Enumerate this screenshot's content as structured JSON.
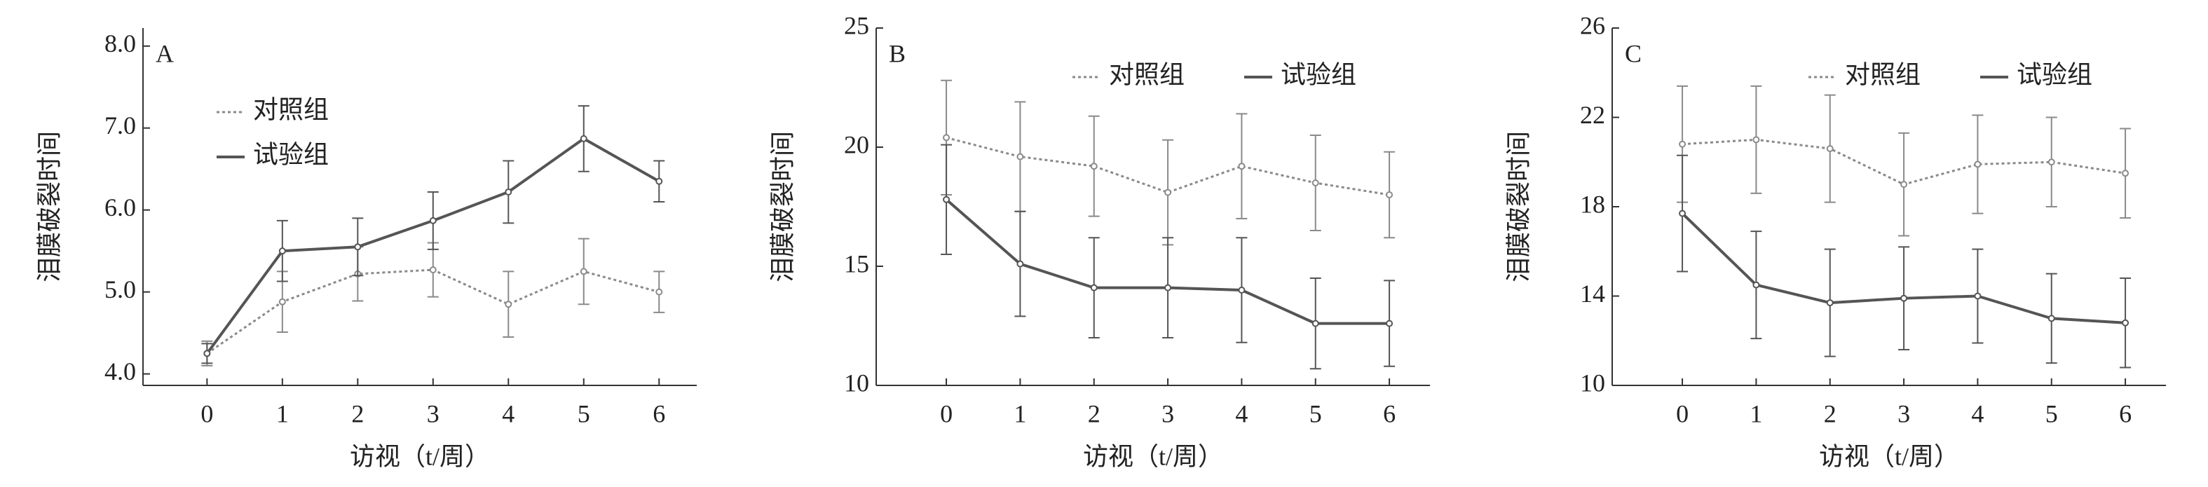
{
  "chart_data": [
    {
      "type": "line",
      "panel_label": "A",
      "ylabel": "泪膜破裂时间",
      "xlabel": "访视（t/周）",
      "legend": "upper left",
      "x": [
        0,
        1,
        2,
        3,
        4,
        5,
        6
      ],
      "xlim": [
        -0.85,
        6.5
      ],
      "xticks": [
        0,
        1,
        2,
        3,
        4,
        5,
        6
      ],
      "ylim": [
        3.86,
        8.22
      ],
      "yticks": [
        {
          "value": 4,
          "label": "4.0"
        },
        {
          "value": 5,
          "label": "5.0"
        },
        {
          "value": 6,
          "label": "6.0"
        },
        {
          "value": 7,
          "label": "7.0"
        },
        {
          "value": 8,
          "label": "8.0"
        }
      ],
      "series": [
        {
          "name": "对照组",
          "color": "#8a8a8a",
          "style": "dotted",
          "values": [
            4.25,
            4.88,
            5.22,
            5.27,
            4.85,
            5.25,
            5.0
          ],
          "errors": [
            0.15,
            0.37,
            0.33,
            0.33,
            0.4,
            0.4,
            0.25
          ]
        },
        {
          "name": "试验组",
          "color": "#555555",
          "style": "solid",
          "values": [
            4.25,
            5.5,
            5.55,
            5.87,
            6.22,
            6.87,
            6.35
          ],
          "errors": [
            0.12,
            0.37,
            0.35,
            0.35,
            0.38,
            0.4,
            0.25
          ]
        }
      ]
    },
    {
      "type": "line",
      "panel_label": "B",
      "ylabel": "泪膜破裂时间",
      "xlabel": "访视（t/周）",
      "legend": "upper right",
      "x": [
        0,
        1,
        2,
        3,
        4,
        5,
        6
      ],
      "xlim": [
        -0.95,
        6.55
      ],
      "xticks": [
        0,
        1,
        2,
        3,
        4,
        5,
        6
      ],
      "ylim": [
        10,
        25
      ],
      "yticks": [
        10,
        15,
        20,
        25
      ],
      "series": [
        {
          "name": "对照组",
          "color": "#8a8a8a",
          "style": "dotted",
          "values": [
            20.4,
            19.6,
            19.2,
            18.1,
            19.2,
            18.5,
            18.0
          ],
          "errors": [
            2.4,
            2.3,
            2.1,
            2.2,
            2.2,
            2.0,
            1.8
          ]
        },
        {
          "name": "试验组",
          "color": "#555555",
          "style": "solid",
          "values": [
            17.8,
            15.1,
            14.1,
            14.1,
            14.0,
            12.6,
            12.6
          ],
          "errors": [
            2.3,
            2.2,
            2.1,
            2.1,
            2.2,
            1.9,
            1.8
          ]
        }
      ]
    },
    {
      "type": "line",
      "panel_label": "C",
      "ylabel": "泪膜破裂时间",
      "xlabel": "访视（t/周）",
      "legend": "upper right",
      "x": [
        0,
        1,
        2,
        3,
        4,
        5,
        6
      ],
      "xlim": [
        -0.95,
        6.55
      ],
      "xticks": [
        0,
        1,
        2,
        3,
        4,
        5,
        6
      ],
      "ylim": [
        10,
        26
      ],
      "yticks": [
        10,
        14,
        18,
        22,
        26
      ],
      "series": [
        {
          "name": "对照组",
          "color": "#8a8a8a",
          "style": "dotted",
          "values": [
            20.8,
            21.0,
            20.6,
            19.0,
            19.9,
            20.0,
            19.5
          ],
          "errors": [
            2.6,
            2.4,
            2.4,
            2.3,
            2.2,
            2.0,
            2.0
          ]
        },
        {
          "name": "试验组",
          "color": "#555555",
          "style": "solid",
          "values": [
            17.7,
            14.5,
            13.7,
            13.9,
            14.0,
            13.0,
            12.8
          ],
          "errors": [
            2.6,
            2.4,
            2.4,
            2.3,
            2.1,
            2.0,
            2.0
          ]
        }
      ]
    }
  ]
}
